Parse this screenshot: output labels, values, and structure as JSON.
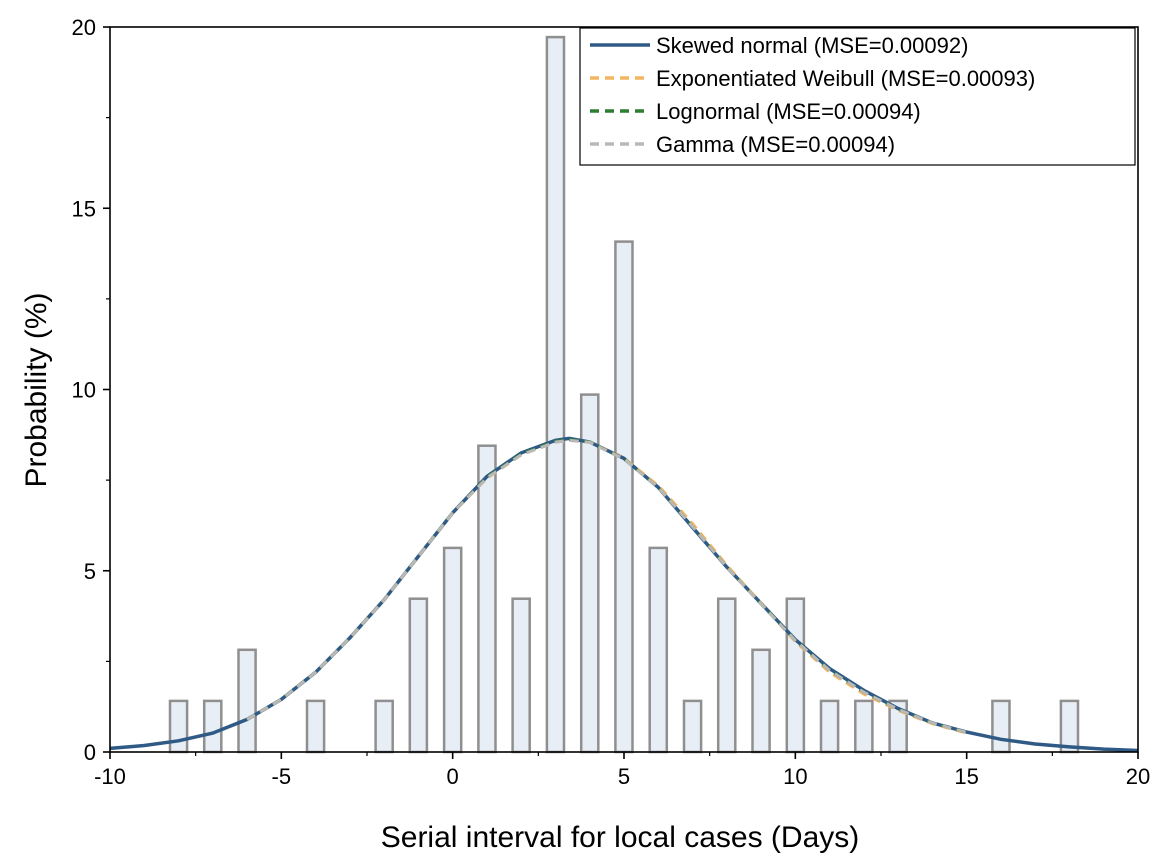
{
  "chart_data": {
    "type": "bar",
    "xlabel": "Serial interval for local cases (Days)",
    "ylabel": "Probability (%)",
    "xlim": [
      -10,
      20
    ],
    "ylim": [
      0,
      20
    ],
    "x_ticks": [
      "-10",
      "-5",
      "0",
      "5",
      "10",
      "15",
      "20"
    ],
    "y_ticks": [
      "0",
      "5",
      "10",
      "15",
      "20"
    ],
    "grid": false,
    "legend_position": "top-right",
    "bars": {
      "x": [
        -8,
        -7,
        -6,
        -4,
        -2,
        -1,
        0,
        1,
        2,
        3,
        4,
        5,
        6,
        7,
        8,
        9,
        10,
        11,
        12,
        13,
        16,
        18
      ],
      "values": [
        1.41,
        1.41,
        2.82,
        1.41,
        1.41,
        4.23,
        5.63,
        8.45,
        4.23,
        19.72,
        9.86,
        14.08,
        5.63,
        1.41,
        4.23,
        2.82,
        4.23,
        1.41,
        1.41,
        1.41,
        1.41,
        1.41
      ],
      "fill_color": "#e8eef6",
      "stroke_color": "#8f8f8f"
    },
    "series": [
      {
        "name": "Skewed normal (MSE=0.00092)",
        "color": "#2e5a85",
        "dash": "solid",
        "x": [
          -10,
          -9,
          -8,
          -7,
          -6,
          -5,
          -4,
          -3,
          -2,
          -1,
          0,
          1,
          2,
          3,
          3.4,
          4,
          5,
          6,
          7,
          8,
          9,
          10,
          11,
          12,
          13,
          14,
          15,
          16,
          17,
          18,
          19,
          20
        ],
        "values": [
          0.1,
          0.18,
          0.31,
          0.52,
          0.9,
          1.45,
          2.2,
          3.15,
          4.2,
          5.4,
          6.6,
          7.6,
          8.25,
          8.6,
          8.65,
          8.55,
          8.1,
          7.3,
          6.2,
          5.1,
          4.1,
          3.1,
          2.3,
          1.7,
          1.2,
          0.8,
          0.55,
          0.35,
          0.22,
          0.14,
          0.08,
          0.04
        ]
      },
      {
        "name": "Exponentiated Weibull (MSE=0.00093)",
        "color": "#f4b560",
        "dash": "dashed",
        "x": [
          -6,
          -5,
          -4,
          -3,
          -2,
          -1,
          0,
          1,
          2,
          3,
          3.4,
          4,
          5,
          6,
          7,
          8,
          9,
          10,
          11,
          12,
          13,
          14,
          15
        ],
        "values": [
          0.9,
          1.45,
          2.2,
          3.15,
          4.2,
          5.4,
          6.6,
          7.55,
          8.2,
          8.55,
          8.6,
          8.55,
          8.1,
          7.35,
          6.3,
          5.15,
          4.1,
          3.05,
          2.2,
          1.6,
          1.15,
          0.78,
          0.52
        ]
      },
      {
        "name": "Lognormal  (MSE=0.00094)",
        "color": "#2e7d32",
        "dash": "dashed",
        "x": [
          -6,
          -5,
          -4,
          -3,
          -2,
          -1,
          0,
          1,
          2,
          3,
          3.4,
          4,
          5,
          6,
          7,
          8,
          9,
          10,
          11,
          12,
          13,
          14,
          15
        ],
        "values": [
          0.9,
          1.45,
          2.2,
          3.15,
          4.2,
          5.4,
          6.6,
          7.58,
          8.22,
          8.57,
          8.62,
          8.55,
          8.08,
          7.3,
          6.22,
          5.1,
          4.08,
          3.08,
          2.25,
          1.65,
          1.18,
          0.8,
          0.54
        ]
      },
      {
        "name": "Gamma (MSE=0.00094)",
        "color": "#b8b8b8",
        "dash": "dashed",
        "x": [
          -6,
          -5,
          -4,
          -3,
          -2,
          -1,
          0,
          1,
          2,
          3,
          3.4,
          4,
          5,
          6,
          7,
          8,
          9,
          10,
          11,
          12,
          13,
          14,
          15
        ],
        "values": [
          0.9,
          1.45,
          2.2,
          3.15,
          4.2,
          5.4,
          6.6,
          7.56,
          8.2,
          8.55,
          8.6,
          8.54,
          8.08,
          7.3,
          6.22,
          5.1,
          4.08,
          3.08,
          2.25,
          1.65,
          1.18,
          0.8,
          0.54
        ]
      }
    ]
  }
}
